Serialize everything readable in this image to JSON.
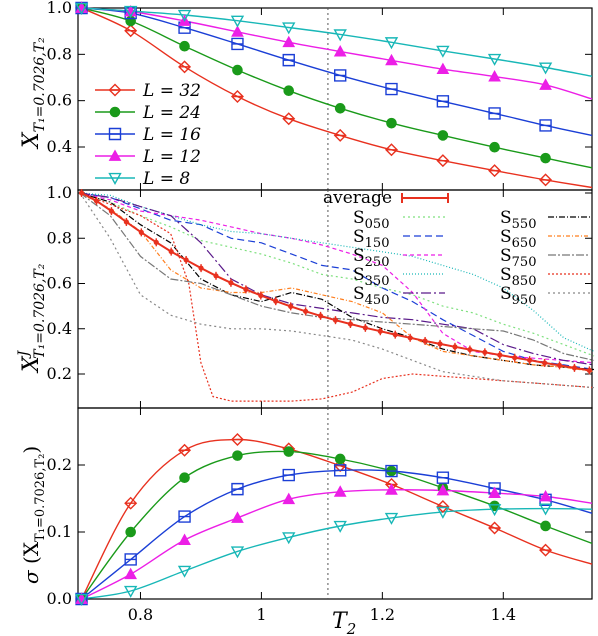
{
  "chart_data": [
    {
      "type": "line",
      "ylabel_main": "X",
      "ylabel_sub": "T₁=0.7026,T₂",
      "xlim": [
        0.7,
        1.55
      ],
      "ylim": [
        0.2,
        1.0
      ],
      "yticks": [
        "1.0",
        "0.8",
        "0.6",
        "0.4"
      ],
      "ytick_values": [
        1.0,
        0.8,
        0.6,
        0.4
      ],
      "vline_x": 1.11,
      "legend_placement": "bottom-left",
      "series": [
        {
          "name": "L = 32",
          "color": "#e8311f",
          "marker": "diamond-open",
          "x": [
            0.7026,
            0.7838,
            0.8729,
            0.9604,
            1.0452,
            1.1303,
            1.2151,
            1.3001,
            1.3856,
            1.4699
          ],
          "y": [
            1.0,
            0.902,
            0.746,
            0.618,
            0.522,
            0.45,
            0.388,
            0.341,
            0.298,
            0.258
          ],
          "fit_end": 0.225
        },
        {
          "name": "L = 24",
          "color": "#1a9a1a",
          "marker": "circle-filled",
          "x": [
            0.7026,
            0.7838,
            0.8729,
            0.9604,
            1.0452,
            1.1303,
            1.2151,
            1.3001,
            1.3856,
            1.4699
          ],
          "y": [
            1.0,
            0.944,
            0.835,
            0.732,
            0.643,
            0.567,
            0.503,
            0.45,
            0.399,
            0.352
          ],
          "fit_end": 0.31
        },
        {
          "name": "L = 16",
          "color": "#1b3fd6",
          "marker": "square-open",
          "x": [
            0.7026,
            0.7838,
            0.8729,
            0.9604,
            1.0452,
            1.1303,
            1.2151,
            1.3001,
            1.3856,
            1.4699
          ],
          "y": [
            1.0,
            0.978,
            0.915,
            0.845,
            0.775,
            0.709,
            0.65,
            0.597,
            0.545,
            0.493
          ],
          "fit_end": 0.45
        },
        {
          "name": "L = 12",
          "color": "#ec1fe6",
          "marker": "triangle-up-filled",
          "x": [
            0.7026,
            0.7838,
            0.8729,
            0.9604,
            1.0452,
            1.1303,
            1.2151,
            1.3001,
            1.3856,
            1.4699
          ],
          "y": [
            1.0,
            0.985,
            0.944,
            0.897,
            0.852,
            0.812,
            0.774,
            0.736,
            0.704,
            0.668
          ],
          "fit_end": 0.607
        },
        {
          "name": "L =   8",
          "color": "#18b7b7",
          "marker": "triangle-down-open",
          "x": [
            0.7026,
            0.7838,
            0.8729,
            0.9604,
            1.0452,
            1.1303,
            1.2151,
            1.3001,
            1.3856,
            1.4699
          ],
          "y": [
            1.0,
            0.987,
            0.97,
            0.945,
            0.916,
            0.886,
            0.852,
            0.815,
            0.78,
            0.743
          ],
          "fit_end": 0.705
        }
      ]
    },
    {
      "type": "line",
      "ylabel_main": "X",
      "ylabel_sup": "J",
      "ylabel_sub": "T₁=0.7026,T₂",
      "xlim": [
        0.7,
        1.55
      ],
      "ylim": [
        0.05,
        1.0
      ],
      "yticks": [
        "1.0",
        "0.8",
        "0.6",
        "0.4",
        "0.2"
      ],
      "ytick_values": [
        1.0,
        0.8,
        0.6,
        0.4,
        0.2
      ],
      "vline_x": 1.11,
      "legend_placement": "top-right",
      "average": {
        "name": "average",
        "color": "#e8311f",
        "x": [
          0.7026,
          0.7273,
          0.752,
          0.7767,
          0.8014,
          0.8261,
          0.8508,
          0.8755,
          0.9002,
          0.9249,
          0.9496,
          0.9743,
          0.999,
          1.0237,
          1.0484,
          1.0731,
          1.0978,
          1.1225,
          1.1472,
          1.1719,
          1.1966,
          1.2213,
          1.246,
          1.2707,
          1.2954,
          1.3201,
          1.3448,
          1.3695,
          1.3942,
          1.4189,
          1.4436,
          1.4683,
          1.493,
          1.5177,
          1.5424
        ],
        "y": [
          1.0,
          0.965,
          0.92,
          0.872,
          0.826,
          0.782,
          0.741,
          0.704,
          0.668,
          0.634,
          0.603,
          0.574,
          0.547,
          0.522,
          0.499,
          0.477,
          0.457,
          0.438,
          0.421,
          0.404,
          0.389,
          0.374,
          0.36,
          0.346,
          0.333,
          0.32,
          0.308,
          0.296,
          0.284,
          0.272,
          0.261,
          0.249,
          0.238,
          0.227,
          0.216
        ]
      },
      "samples": [
        {
          "name": "S050",
          "label_main": "S",
          "label_sub": "050",
          "color": "#7ee07e",
          "dash": "2,3",
          "x": [
            0.7,
            0.75,
            0.8,
            0.85,
            0.9,
            0.95,
            1.0,
            1.05,
            1.1,
            1.15,
            1.2,
            1.25,
            1.3,
            1.35,
            1.4,
            1.45,
            1.5,
            1.55
          ],
          "y": [
            1.0,
            0.96,
            0.9,
            0.85,
            0.79,
            0.76,
            0.73,
            0.69,
            0.64,
            0.62,
            0.58,
            0.55,
            0.5,
            0.47,
            0.42,
            0.38,
            0.33,
            0.28
          ]
        },
        {
          "name": "S150",
          "label_main": "S",
          "label_sub": "150",
          "color": "#1b3fd6",
          "dash": "7,4",
          "x": [
            0.7,
            0.75,
            0.8,
            0.85,
            0.9,
            0.95,
            1.0,
            1.05,
            1.1,
            1.15,
            1.2,
            1.25,
            1.3,
            1.35,
            1.4,
            1.45,
            1.5,
            1.55
          ],
          "y": [
            1.0,
            0.98,
            0.93,
            0.88,
            0.86,
            0.8,
            0.78,
            0.73,
            0.68,
            0.66,
            0.58,
            0.52,
            0.44,
            0.37,
            0.3,
            0.26,
            0.24,
            0.22
          ]
        },
        {
          "name": "S250",
          "label_main": "S",
          "label_sub": "250",
          "color": "#ec1fe6",
          "dash": "4,3",
          "x": [
            0.7,
            0.75,
            0.8,
            0.85,
            0.9,
            0.95,
            1.0,
            1.05,
            1.1,
            1.15,
            1.2,
            1.25,
            1.3,
            1.35,
            1.4,
            1.45,
            1.5,
            1.55
          ],
          "y": [
            1.0,
            0.97,
            0.92,
            0.9,
            0.88,
            0.85,
            0.82,
            0.8,
            0.77,
            0.73,
            0.68,
            0.56,
            0.38,
            0.3,
            0.28,
            0.27,
            0.26,
            0.25
          ]
        },
        {
          "name": "S350",
          "label_main": "S",
          "label_sub": "350",
          "color": "#18b7b7",
          "dash": "1,2",
          "x": [
            0.7,
            0.75,
            0.8,
            0.85,
            0.9,
            0.95,
            1.0,
            1.05,
            1.1,
            1.15,
            1.2,
            1.25,
            1.3,
            1.35,
            1.4,
            1.45,
            1.5,
            1.55
          ],
          "y": [
            1.0,
            0.99,
            0.94,
            0.9,
            0.86,
            0.83,
            0.82,
            0.8,
            0.78,
            0.76,
            0.74,
            0.72,
            0.68,
            0.64,
            0.58,
            0.48,
            0.36,
            0.3
          ]
        },
        {
          "name": "S450",
          "label_main": "S",
          "label_sub": "450",
          "color": "#5a1a8a",
          "dash": "10,3,2,3",
          "x": [
            0.7,
            0.75,
            0.8,
            0.85,
            0.9,
            0.95,
            1.0,
            1.05,
            1.1,
            1.15,
            1.2,
            1.25,
            1.3,
            1.35,
            1.4,
            1.45,
            1.5,
            1.55
          ],
          "y": [
            1.0,
            0.98,
            0.94,
            0.9,
            0.78,
            0.62,
            0.55,
            0.51,
            0.49,
            0.47,
            0.45,
            0.44,
            0.42,
            0.4,
            0.33,
            0.29,
            0.26,
            0.24
          ]
        },
        {
          "name": "S550",
          "label_main": "S",
          "label_sub": "550",
          "color": "#000000",
          "dash": "6,2,1,2",
          "x": [
            0.7,
            0.75,
            0.8,
            0.85,
            0.9,
            0.95,
            1.0,
            1.05,
            1.1,
            1.15,
            1.2,
            1.25,
            1.3,
            1.35,
            1.4,
            1.45,
            1.5,
            1.55
          ],
          "y": [
            1.0,
            0.96,
            0.86,
            0.78,
            0.62,
            0.55,
            0.52,
            0.56,
            0.53,
            0.45,
            0.4,
            0.36,
            0.31,
            0.28,
            0.26,
            0.24,
            0.23,
            0.22
          ]
        },
        {
          "name": "S650",
          "label_main": "S",
          "label_sub": "650",
          "color": "#ff7f1f",
          "dash": "4,2,1,2",
          "x": [
            0.7,
            0.75,
            0.8,
            0.85,
            0.9,
            0.95,
            1.0,
            1.05,
            1.1,
            1.15,
            1.2,
            1.25,
            1.3,
            1.35,
            1.4,
            1.45,
            1.5,
            1.55
          ],
          "y": [
            1.0,
            0.93,
            0.83,
            0.66,
            0.58,
            0.56,
            0.56,
            0.58,
            0.55,
            0.52,
            0.47,
            0.36,
            0.3,
            0.28,
            0.26,
            0.24,
            0.23,
            0.21
          ]
        },
        {
          "name": "S750",
          "label_main": "S",
          "label_sub": "750",
          "color": "#777777",
          "dash": "8,2,2,2",
          "x": [
            0.7,
            0.75,
            0.8,
            0.85,
            0.9,
            0.95,
            1.0,
            1.05,
            1.1,
            1.15,
            1.2,
            1.25,
            1.3,
            1.35,
            1.4,
            1.45,
            1.5,
            1.55
          ],
          "y": [
            1.0,
            0.9,
            0.72,
            0.62,
            0.6,
            0.55,
            0.5,
            0.47,
            0.45,
            0.44,
            0.43,
            0.42,
            0.41,
            0.4,
            0.39,
            0.35,
            0.29,
            0.26
          ]
        },
        {
          "name": "S850",
          "label_main": "S",
          "label_sub": "850",
          "color": "#e8311f",
          "dash": "2,2",
          "x": [
            0.7,
            0.75,
            0.8,
            0.85,
            0.88,
            0.9,
            0.92,
            0.95,
            1.0,
            1.05,
            1.1,
            1.15,
            1.2,
            1.25,
            1.3,
            1.35,
            1.4,
            1.45,
            1.5,
            1.55
          ],
          "y": [
            1.0,
            0.95,
            0.9,
            0.82,
            0.6,
            0.25,
            0.1,
            0.08,
            0.08,
            0.08,
            0.09,
            0.12,
            0.18,
            0.2,
            0.19,
            0.18,
            0.17,
            0.16,
            0.15,
            0.14
          ]
        },
        {
          "name": "S950",
          "label_main": "S",
          "label_sub": "950",
          "color": "#888888",
          "dash": "2,3",
          "x": [
            0.7,
            0.75,
            0.8,
            0.85,
            0.9,
            0.95,
            1.0,
            1.05,
            1.1,
            1.15,
            1.2,
            1.25,
            1.3,
            1.35,
            1.4,
            1.45,
            1.5,
            1.55
          ],
          "y": [
            1.0,
            0.8,
            0.55,
            0.46,
            0.42,
            0.4,
            0.4,
            0.39,
            0.37,
            0.35,
            0.31,
            0.26,
            0.21,
            0.19,
            0.17,
            0.16,
            0.15,
            0.14
          ]
        }
      ]
    },
    {
      "type": "line",
      "ylabel_pre": "σ (X",
      "ylabel_sub": "T₁=0.7026,T₂",
      "ylabel_post": ")",
      "xlabel_main": "T",
      "xlabel_sub": "2",
      "xlim": [
        0.7,
        1.55
      ],
      "ylim": [
        0.0,
        0.27
      ],
      "yticks": [
        "0.2",
        "0.1",
        "0.0"
      ],
      "ytick_values": [
        0.2,
        0.1,
        0.0
      ],
      "xticks": [
        "0.8",
        "1",
        "1.2",
        "1.4"
      ],
      "xtick_values": [
        0.8,
        1.0,
        1.2,
        1.4
      ],
      "vline_x": 1.11,
      "series": [
        {
          "name": "L = 32",
          "color": "#e8311f",
          "marker": "diamond-open",
          "x": [
            0.7026,
            0.7838,
            0.8729,
            0.9604,
            1.0452,
            1.1303,
            1.2151,
            1.3001,
            1.3856,
            1.4699
          ],
          "y": [
            0.0,
            0.143,
            0.222,
            0.238,
            0.224,
            0.199,
            0.171,
            0.138,
            0.106,
            0.073
          ]
        },
        {
          "name": "L = 24",
          "color": "#1a9a1a",
          "marker": "circle-filled",
          "x": [
            0.7026,
            0.7838,
            0.8729,
            0.9604,
            1.0452,
            1.1303,
            1.2151,
            1.3001,
            1.3856,
            1.4699
          ],
          "y": [
            0.0,
            0.1,
            0.181,
            0.214,
            0.22,
            0.209,
            0.191,
            0.166,
            0.139,
            0.109
          ]
        },
        {
          "name": "L = 16",
          "color": "#1b3fd6",
          "marker": "square-open",
          "x": [
            0.7026,
            0.7838,
            0.8729,
            0.9604,
            1.0452,
            1.1303,
            1.2151,
            1.3001,
            1.3856,
            1.4699
          ],
          "y": [
            0.0,
            0.059,
            0.123,
            0.164,
            0.185,
            0.192,
            0.191,
            0.181,
            0.165,
            0.148
          ]
        },
        {
          "name": "L = 12",
          "color": "#ec1fe6",
          "marker": "triangle-up-filled",
          "x": [
            0.7026,
            0.7838,
            0.8729,
            0.9604,
            1.0452,
            1.1303,
            1.2151,
            1.3001,
            1.3856,
            1.4699
          ],
          "y": [
            0.0,
            0.037,
            0.088,
            0.121,
            0.149,
            0.16,
            0.163,
            0.162,
            0.158,
            0.153
          ]
        },
        {
          "name": "L =   8",
          "color": "#18b7b7",
          "marker": "triangle-down-open",
          "x": [
            0.7026,
            0.7838,
            0.8729,
            0.9604,
            1.0452,
            1.1303,
            1.2151,
            1.3001,
            1.3856,
            1.4699
          ],
          "y": [
            0.0,
            0.012,
            0.042,
            0.071,
            0.092,
            0.109,
            0.121,
            0.13,
            0.134,
            0.135
          ]
        }
      ]
    }
  ]
}
